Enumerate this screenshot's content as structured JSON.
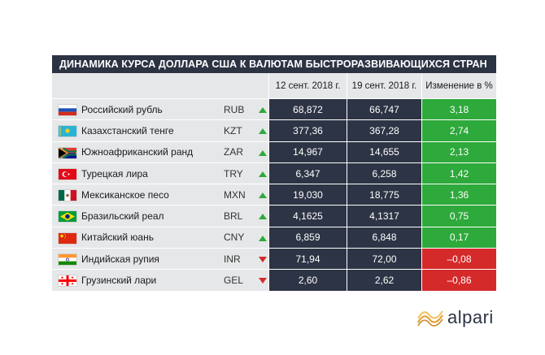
{
  "title": "ДИНАМИКА КУРСА ДОЛЛАРА США К ВАЛЮТАМ БЫСТРОРАЗВИВАЮЩИХСЯ СТРАН",
  "headers": {
    "date1": "12 сент. 2018 г.",
    "date2": "19 сент. 2018 г.",
    "change": "Изменение в %"
  },
  "colors": {
    "up": "#2ea93b",
    "down": "#d42a2a",
    "dark": "#2d3445",
    "light": "#e6e7e9"
  },
  "rows": [
    {
      "flag": "russia-flag-icon",
      "name": "Российский рубль",
      "code": "RUB",
      "trend": "up",
      "v1": "68,872",
      "v2": "66,747",
      "change": "3,18"
    },
    {
      "flag": "kazakhstan-flag-icon",
      "name": "Казахстанский тенге",
      "code": "KZT",
      "trend": "up",
      "v1": "377,36",
      "v2": "367,28",
      "change": "2,74"
    },
    {
      "flag": "south-africa-flag-icon",
      "name": "Южноафриканский ранд",
      "code": "ZAR",
      "trend": "up",
      "v1": "14,967",
      "v2": "14,655",
      "change": "2,13"
    },
    {
      "flag": "turkey-flag-icon",
      "name": "Турецкая лира",
      "code": "TRY",
      "trend": "up",
      "v1": "6,347",
      "v2": "6,258",
      "change": "1,42"
    },
    {
      "flag": "mexico-flag-icon",
      "name": "Мексиканское песо",
      "code": "MXN",
      "trend": "up",
      "v1": "19,030",
      "v2": "18,775",
      "change": "1,36"
    },
    {
      "flag": "brazil-flag-icon",
      "name": "Бразильский реал",
      "code": "BRL",
      "trend": "up",
      "v1": "4,1625",
      "v2": "4,1317",
      "change": "0,75"
    },
    {
      "flag": "china-flag-icon",
      "name": "Китайский юань",
      "code": "CNY",
      "trend": "up",
      "v1": "6,859",
      "v2": "6,848",
      "change": "0,17"
    },
    {
      "flag": "india-flag-icon",
      "name": "Индийская рупия",
      "code": "INR",
      "trend": "down",
      "v1": "71,94",
      "v2": "72,00",
      "change": "–0,08"
    },
    {
      "flag": "georgia-flag-icon",
      "name": "Грузинский лари",
      "code": "GEL",
      "trend": "down",
      "v1": "2,60",
      "v2": "2,62",
      "change": "–0,86"
    }
  ],
  "logo": {
    "text": "alpari",
    "icon": "alpari-waves-icon"
  }
}
